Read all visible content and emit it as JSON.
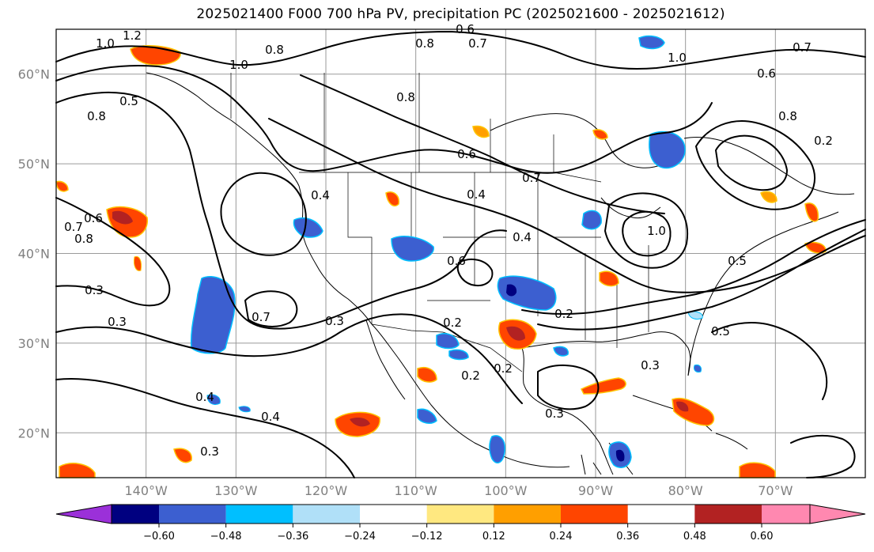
{
  "title": "2025021400 F000 700 hPa PV, precipitation PC (2025021600 - 2025021612)",
  "map": {
    "lat_labels": [
      "60°N",
      "50°N",
      "40°N",
      "30°N",
      "20°N"
    ],
    "lon_labels": [
      "140°W",
      "130°W",
      "120°W",
      "110°W",
      "100°W",
      "90°W",
      "80°W",
      "70°W"
    ],
    "lat_values": [
      60,
      50,
      40,
      30,
      20
    ],
    "lon_values": [
      -140,
      -130,
      -120,
      -110,
      -100,
      -90,
      -80,
      -70
    ],
    "extent": {
      "lon_min": -150,
      "lon_max": -60,
      "lat_min": 15,
      "lat_max": 65
    }
  },
  "contour_labels": [
    "1.2",
    "1.0",
    "0.6",
    "0.7",
    "0.8",
    "0.8",
    "1.0",
    "0.6",
    "0.8",
    "0.7",
    "0.5",
    "0.8",
    "1.0",
    "0.8",
    "0.6",
    "0.7",
    "0.4",
    "0.4",
    "0.6",
    "0.4",
    "0.7",
    "0.5",
    "0.3",
    "0.7",
    "0.3",
    "0.3",
    "0.2",
    "0.2",
    "0.2",
    "0.2",
    "0.3",
    "0.3",
    "0.4",
    "0.3",
    "0.4",
    "0.5",
    "0.6",
    "0.8",
    "1.0",
    "0.2"
  ],
  "colorbar": {
    "ticks": [
      "−0.60",
      "−0.48",
      "−0.36",
      "−0.24",
      "−0.12",
      "0.12",
      "0.24",
      "0.36",
      "0.48",
      "0.60"
    ],
    "under_color": "#9b30d9",
    "over_color": "#ff88b0",
    "colors": [
      "#000080",
      "#3c5fd0",
      "#00bfff",
      "#b0e0f8",
      "#ffffff",
      "#ffe880",
      "#ff9f00",
      "#ff4500",
      "#b22222"
    ]
  },
  "colors": {
    "negative_fill": "#3c5fd0",
    "negative_core": "#000080",
    "negative_edge": "#00bfff",
    "positive_fill": "#ff4500",
    "positive_core": "#b22222",
    "positive_edge": "#ffc400"
  }
}
